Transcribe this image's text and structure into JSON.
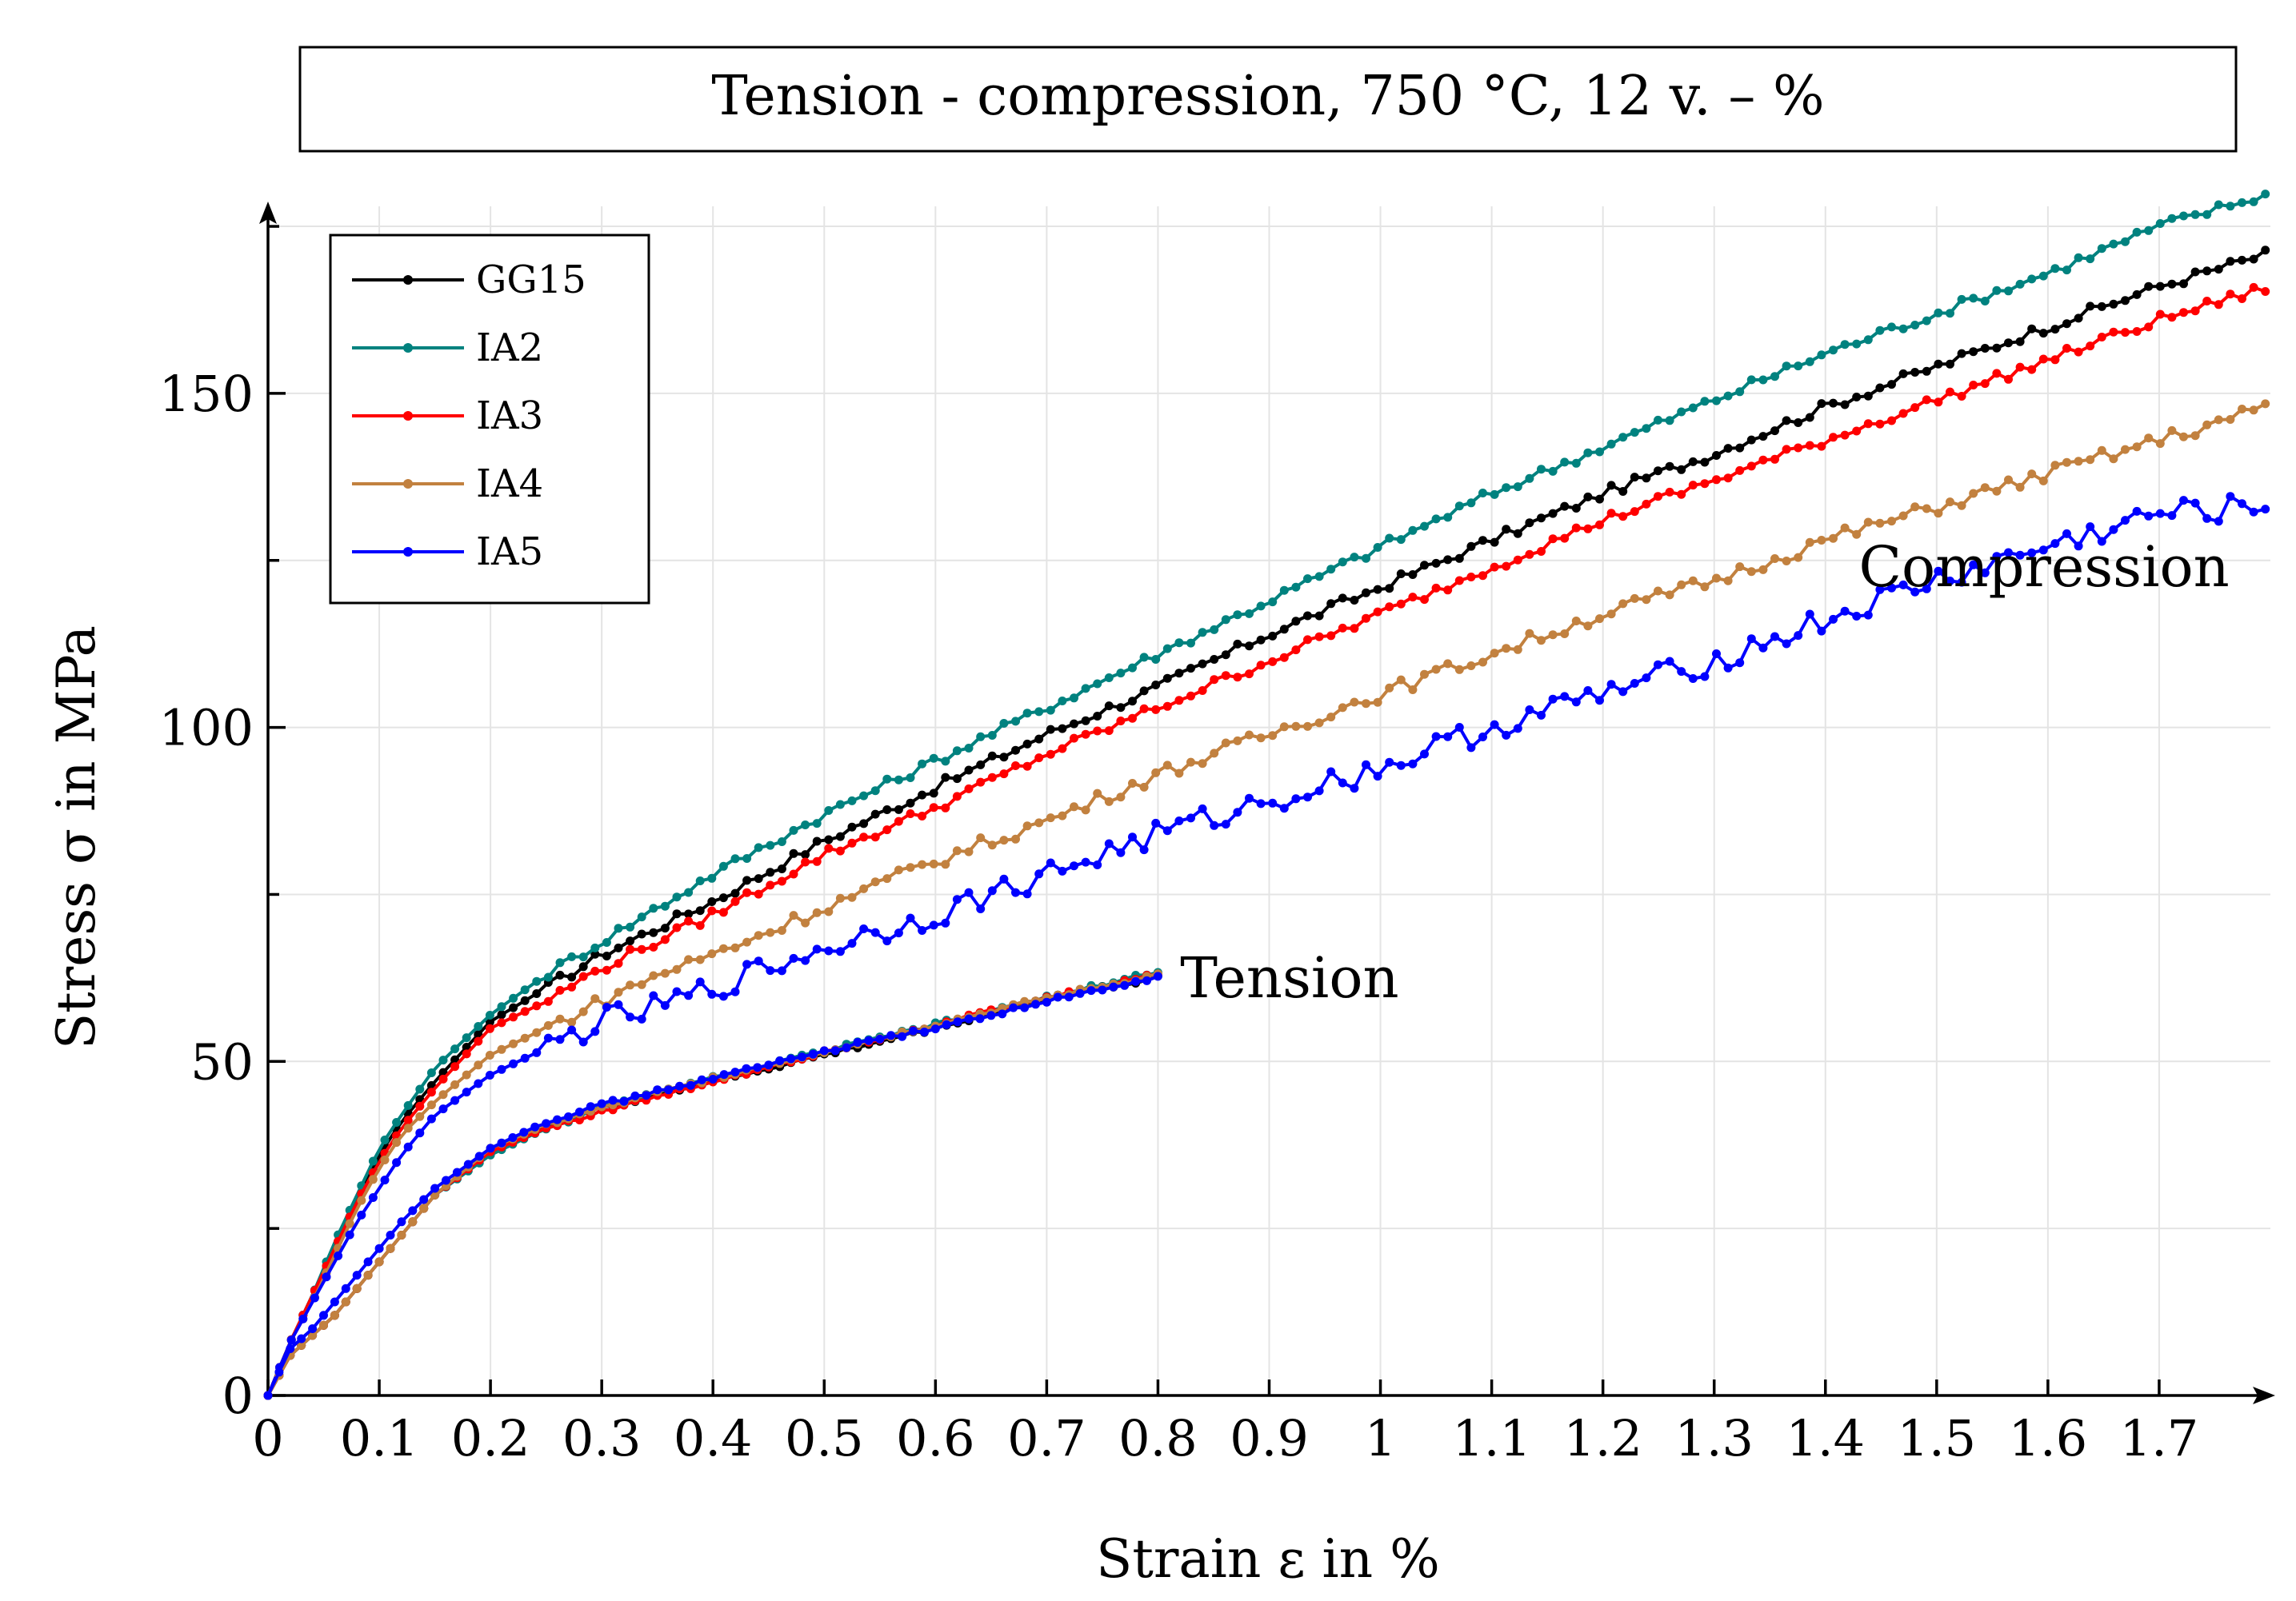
{
  "chart_data": {
    "type": "line",
    "title": "Tension - compression, 750 °C, 12 v. – %",
    "xlabel": "Strain ε in %",
    "ylabel": "Stress σ in MPa",
    "xlim": [
      0,
      1.8
    ],
    "ylim": [
      0,
      178
    ],
    "x_ticks": [
      0,
      0.1,
      0.2,
      0.3,
      0.4,
      0.5,
      0.6,
      0.7,
      0.8,
      0.9,
      1,
      1.1,
      1.2,
      1.3,
      1.4,
      1.5,
      1.6,
      1.7
    ],
    "x_tick_labels": [
      "0",
      "0.1",
      "0.2",
      "0.3",
      "0.4",
      "0.5",
      "0.6",
      "0.7",
      "0.8",
      "0.9",
      "1",
      "1.1",
      "1.2",
      "1.3",
      "1.4",
      "1.5",
      "1.6",
      "1.7"
    ],
    "y_ticks": [
      0,
      50,
      100,
      150
    ],
    "y_tick_labels": [
      "0",
      "50",
      "100",
      "150"
    ],
    "y_minor_ticks": [
      25,
      75,
      125,
      175
    ],
    "grid": true,
    "legend_position": "top-left",
    "annotations": [
      {
        "text": "Tension",
        "x": 0.82,
        "y": 62.5
      },
      {
        "text": "Compression",
        "x": 1.43,
        "y": 124
      }
    ],
    "series": [
      {
        "name": "GG15",
        "color": "#000000",
        "branch": "compression",
        "x": [
          0,
          0.02,
          0.04,
          0.06,
          0.08,
          0.1,
          0.12,
          0.15,
          0.2,
          0.25,
          0.3,
          0.35,
          0.4,
          0.5,
          0.6,
          0.7,
          0.8,
          0.9,
          1.0,
          1.1,
          1.2,
          1.3,
          1.4,
          1.5,
          1.6,
          1.7,
          1.8
        ],
        "y": [
          0,
          8,
          15,
          22,
          29,
          36,
          41,
          47,
          56,
          61,
          66,
          70,
          74,
          83,
          91,
          99,
          106,
          114,
          121,
          128,
          135,
          141,
          148,
          154,
          160,
          166,
          171
        ]
      },
      {
        "name": "IA2",
        "color": "#00827f",
        "branch": "compression",
        "x": [
          0,
          0.02,
          0.04,
          0.06,
          0.08,
          0.1,
          0.12,
          0.15,
          0.2,
          0.25,
          0.3,
          0.35,
          0.4,
          0.5,
          0.6,
          0.7,
          0.8,
          0.9,
          1.0,
          1.1,
          1.2,
          1.3,
          1.4,
          1.5,
          1.6,
          1.7,
          1.8
        ],
        "y": [
          0,
          8,
          15,
          23,
          30,
          37,
          42,
          49,
          57,
          63,
          68,
          73,
          78,
          87,
          95,
          103,
          111,
          119,
          127,
          135,
          142,
          149,
          156,
          162,
          168,
          175,
          180
        ]
      },
      {
        "name": "IA3",
        "color": "#ff0000",
        "branch": "compression",
        "x": [
          0,
          0.02,
          0.04,
          0.06,
          0.08,
          0.1,
          0.12,
          0.15,
          0.2,
          0.25,
          0.3,
          0.35,
          0.4,
          0.5,
          0.6,
          0.7,
          0.8,
          0.9,
          1.0,
          1.1,
          1.2,
          1.3,
          1.4,
          1.5,
          1.6,
          1.7,
          1.8
        ],
        "y": [
          0,
          8,
          15,
          22,
          29,
          35,
          40,
          46,
          55,
          59,
          64,
          68,
          72,
          81,
          88,
          96,
          103,
          110,
          117,
          124,
          131,
          137,
          143,
          149,
          155,
          161,
          166
        ]
      },
      {
        "name": "IA4",
        "color": "#c2813f",
        "branch": "compression",
        "x": [
          0,
          0.02,
          0.04,
          0.06,
          0.08,
          0.1,
          0.12,
          0.15,
          0.2,
          0.25,
          0.3,
          0.35,
          0.4,
          0.5,
          0.6,
          0.7,
          0.8,
          0.9,
          1.0,
          1.1,
          1.2,
          1.3,
          1.4,
          1.5,
          1.6,
          1.7,
          1.8
        ],
        "y": [
          0,
          8,
          14,
          21,
          28,
          34,
          39,
          44,
          51,
          55,
          59,
          63,
          66,
          73,
          80,
          86,
          93,
          99,
          105,
          111,
          117,
          122,
          128,
          133,
          138,
          143,
          148
        ]
      },
      {
        "name": "IA5",
        "color": "#0000ff",
        "branch": "compression",
        "x": [
          0,
          0.02,
          0.04,
          0.06,
          0.08,
          0.1,
          0.12,
          0.15,
          0.2,
          0.25,
          0.3,
          0.35,
          0.4,
          0.5,
          0.6,
          0.7,
          0.8,
          0.9,
          1.0,
          1.1,
          1.2,
          1.3,
          1.4,
          1.5,
          1.6,
          1.7,
          1.8
        ],
        "y": [
          0,
          8,
          14,
          20,
          26,
          31,
          36,
          42,
          48,
          52,
          56,
          58,
          61,
          67,
          72,
          78,
          84,
          89,
          94,
          100,
          105,
          110,
          116,
          122,
          127,
          132,
          133
        ]
      },
      {
        "name": "GG15",
        "color": "#000000",
        "branch": "tension",
        "x": [
          0,
          0.02,
          0.04,
          0.06,
          0.08,
          0.1,
          0.12,
          0.15,
          0.2,
          0.25,
          0.3,
          0.4,
          0.5,
          0.6,
          0.7,
          0.8
        ],
        "y": [
          0,
          6,
          9,
          12,
          16,
          20,
          24,
          30,
          37,
          40.5,
          43,
          47,
          51,
          55,
          59.5,
          62.5
        ]
      },
      {
        "name": "IA2",
        "color": "#00827f",
        "branch": "tension",
        "x": [
          0,
          0.02,
          0.04,
          0.06,
          0.08,
          0.1,
          0.12,
          0.15,
          0.2,
          0.25,
          0.3,
          0.4,
          0.5,
          0.6,
          0.7,
          0.8
        ],
        "y": [
          0,
          6,
          9,
          12,
          16,
          20,
          24,
          30,
          36,
          40,
          43,
          47.5,
          51.5,
          55.5,
          59.5,
          63.5
        ]
      },
      {
        "name": "IA3",
        "color": "#ff0000",
        "branch": "tension",
        "x": [
          0,
          0.02,
          0.04,
          0.06,
          0.08,
          0.1,
          0.12,
          0.15,
          0.2,
          0.25,
          0.3,
          0.4,
          0.5,
          0.6,
          0.7,
          0.8
        ],
        "y": [
          0,
          6,
          9,
          12,
          16,
          20,
          24,
          30,
          36.5,
          40,
          42.5,
          47,
          51.5,
          55.5,
          59.5,
          63
        ]
      },
      {
        "name": "IA4",
        "color": "#c2813f",
        "branch": "tension",
        "x": [
          0,
          0.02,
          0.04,
          0.06,
          0.08,
          0.1,
          0.12,
          0.15,
          0.2,
          0.25,
          0.3,
          0.4,
          0.5,
          0.6,
          0.7,
          0.8
        ],
        "y": [
          0,
          6,
          9,
          12,
          16,
          20,
          24,
          30,
          37,
          40.5,
          43,
          47.5,
          51.5,
          55.5,
          59.5,
          63
        ]
      },
      {
        "name": "IA5",
        "color": "#0000ff",
        "branch": "tension",
        "x": [
          0,
          0.02,
          0.04,
          0.06,
          0.08,
          0.1,
          0.12,
          0.15,
          0.2,
          0.25,
          0.3,
          0.4,
          0.5,
          0.6,
          0.7,
          0.8
        ],
        "y": [
          0,
          7,
          10,
          14,
          18,
          22,
          26,
          31,
          37,
          41,
          43.5,
          47.5,
          51.5,
          55,
          59,
          62.5
        ]
      }
    ]
  }
}
